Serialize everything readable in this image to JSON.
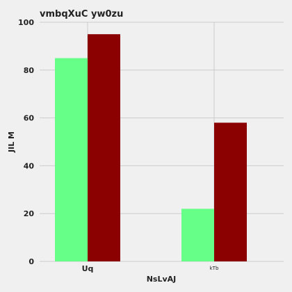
{
  "chart_data": {
    "type": "bar",
    "title": "vmbqXuC yw0zu",
    "xlabel": "NsLvAJ",
    "ylabel": "JIL M",
    "categories": [
      "Uq",
      "kTb"
    ],
    "series": [
      {
        "values": [
          85,
          22
        ]
      },
      {
        "values": [
          95,
          58
        ]
      }
    ],
    "ylim": [
      0,
      100
    ],
    "yticks": [
      0,
      20,
      40,
      60,
      80,
      100
    ],
    "grid": true,
    "legend": "none",
    "colors": {
      "background": "#f0f0f0",
      "grid": "#cbcbcb",
      "series": [
        "#66ff88",
        "#8b0000"
      ]
    }
  }
}
